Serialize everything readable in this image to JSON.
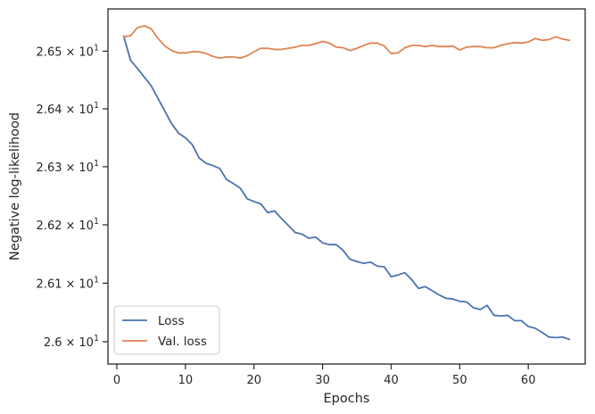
{
  "chart_data": {
    "type": "line",
    "xlabel": "Epochs",
    "ylabel": "Negative log-likelihood",
    "xlim": [
      -1.3,
      68.3
    ],
    "ylim": [
      25.962,
      26.5735
    ],
    "y_scale": "log",
    "grid": false,
    "legend_position": "lower-left",
    "x_ticks": [
      {
        "value": 0,
        "label": "0"
      },
      {
        "value": 10,
        "label": "10"
      },
      {
        "value": 20,
        "label": "20"
      },
      {
        "value": 30,
        "label": "30"
      },
      {
        "value": 40,
        "label": "40"
      },
      {
        "value": 50,
        "label": "50"
      },
      {
        "value": 60,
        "label": "60"
      }
    ],
    "y_ticks": [
      {
        "value": 26.0,
        "base": "2.6",
        "times": "×",
        "power": "10",
        "exp": "1"
      },
      {
        "value": 26.1,
        "base": "2.61",
        "times": "×",
        "power": "10",
        "exp": "1"
      },
      {
        "value": 26.2,
        "base": "2.62",
        "times": "×",
        "power": "10",
        "exp": "1"
      },
      {
        "value": 26.3,
        "base": "2.63",
        "times": "×",
        "power": "10",
        "exp": "1"
      },
      {
        "value": 26.4,
        "base": "2.64",
        "times": "×",
        "power": "10",
        "exp": "1"
      },
      {
        "value": 26.5,
        "base": "2.65",
        "times": "×",
        "power": "10",
        "exp": "1"
      }
    ],
    "x": [
      1,
      2,
      3,
      4,
      5,
      6,
      7,
      8,
      9,
      10,
      11,
      12,
      13,
      14,
      15,
      16,
      17,
      18,
      19,
      20,
      21,
      22,
      23,
      24,
      25,
      26,
      27,
      28,
      29,
      30,
      31,
      32,
      33,
      34,
      35,
      36,
      37,
      38,
      39,
      40,
      41,
      42,
      43,
      44,
      45,
      46,
      47,
      48,
      49,
      50,
      51,
      52,
      53,
      54,
      55,
      56,
      57,
      58,
      59,
      60,
      61,
      62,
      63,
      64,
      65,
      66
    ],
    "series": [
      {
        "name": "Loss",
        "color": "#4c72b0",
        "values": [
          26.526,
          26.484,
          26.47,
          26.455,
          26.44,
          26.418,
          26.396,
          26.374,
          26.358,
          26.35,
          26.338,
          26.315,
          26.306,
          26.302,
          26.297,
          26.278,
          26.271,
          26.263,
          26.245,
          26.24,
          26.236,
          26.221,
          26.224,
          26.211,
          26.199,
          26.187,
          26.184,
          26.177,
          26.179,
          26.169,
          26.166,
          26.166,
          26.156,
          26.141,
          26.137,
          26.134,
          26.136,
          26.129,
          26.128,
          26.111,
          26.114,
          26.118,
          26.106,
          26.091,
          26.094,
          26.087,
          26.08,
          26.074,
          26.073,
          26.069,
          26.068,
          26.058,
          26.055,
          26.062,
          26.045,
          26.044,
          26.045,
          26.036,
          26.036,
          26.026,
          26.023,
          26.016,
          26.008,
          26.007,
          26.008,
          26.004
        ]
      },
      {
        "name": "Val. loss",
        "color": "#dd8452",
        "values": [
          26.525,
          26.527,
          26.541,
          26.544,
          26.539,
          26.522,
          26.509,
          26.501,
          26.497,
          26.497,
          26.499,
          26.499,
          26.496,
          26.491,
          26.488,
          26.49,
          26.49,
          26.488,
          26.492,
          26.499,
          26.505,
          26.505,
          26.503,
          26.503,
          26.505,
          26.507,
          26.51,
          26.51,
          26.513,
          26.517,
          26.514,
          26.507,
          26.506,
          26.501,
          26.505,
          26.51,
          26.514,
          26.514,
          26.509,
          26.496,
          26.497,
          26.506,
          26.51,
          26.51,
          26.508,
          26.51,
          26.508,
          26.508,
          26.509,
          26.502,
          26.507,
          26.508,
          26.508,
          26.506,
          26.506,
          26.51,
          26.513,
          26.515,
          26.514,
          26.516,
          26.522,
          26.519,
          26.52,
          26.525,
          26.521,
          26.519
        ]
      }
    ]
  }
}
